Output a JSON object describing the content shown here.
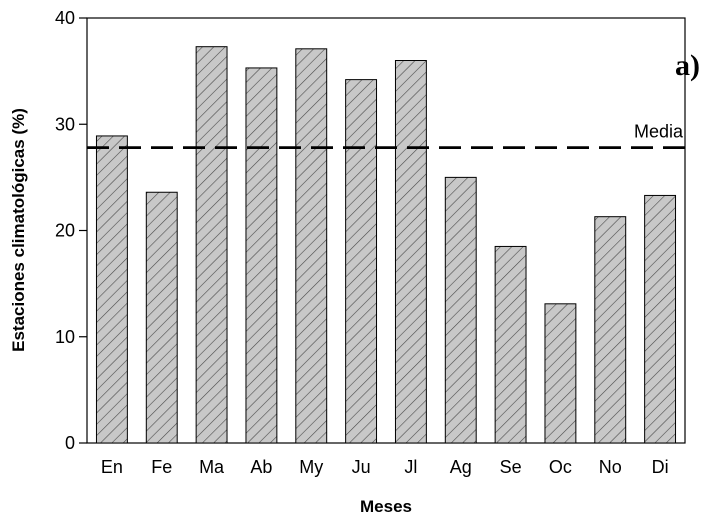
{
  "chart_data": {
    "type": "bar",
    "title": "",
    "xlabel": "Meses",
    "ylabel": "Estaciones climatológicas (%)",
    "panel_label": "a)",
    "categories": [
      "En",
      "Fe",
      "Ma",
      "Ab",
      "My",
      "Ju",
      "Jl",
      "Ag",
      "Se",
      "Oc",
      "No",
      "Di"
    ],
    "values": [
      28.9,
      23.6,
      37.3,
      35.3,
      37.1,
      34.2,
      36.0,
      25.0,
      18.5,
      13.1,
      21.3,
      23.3
    ],
    "ylim": [
      0,
      40
    ],
    "yticks": [
      0,
      10,
      20,
      30,
      40
    ],
    "grid": false,
    "bar_fill": "#c8c8c8",
    "bar_pattern": "diagonal-hatch",
    "reference_line": {
      "label": "Media",
      "value": 27.8,
      "style": "dashed"
    }
  }
}
